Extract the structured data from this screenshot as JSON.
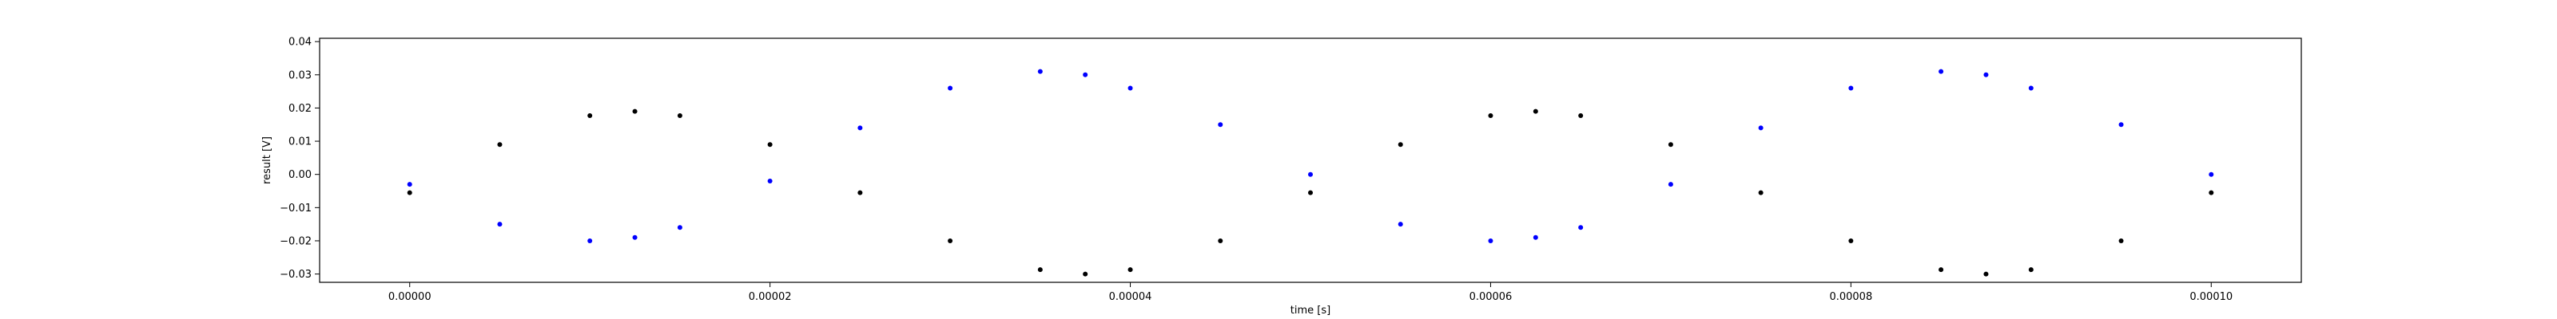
{
  "chart_data": {
    "type": "scatter",
    "xlabel": "time [s]",
    "ylabel": "result [V]",
    "xlim": [
      -5e-06,
      0.000105
    ],
    "ylim": [
      -0.0325,
      0.041
    ],
    "xticks": [
      {
        "value": 0.0,
        "label": "0.00000"
      },
      {
        "value": 2e-05,
        "label": "0.00002"
      },
      {
        "value": 4e-05,
        "label": "0.00004"
      },
      {
        "value": 6e-05,
        "label": "0.00006"
      },
      {
        "value": 8e-05,
        "label": "0.00008"
      },
      {
        "value": 0.0001,
        "label": "0.00010"
      }
    ],
    "yticks": [
      {
        "value": -0.03,
        "label": "−0.03"
      },
      {
        "value": -0.02,
        "label": "−0.02"
      },
      {
        "value": -0.01,
        "label": "−0.01"
      },
      {
        "value": 0.0,
        "label": "0.00"
      },
      {
        "value": 0.01,
        "label": "0.01"
      },
      {
        "value": 0.02,
        "label": "0.02"
      },
      {
        "value": 0.03,
        "label": "0.03"
      },
      {
        "value": 0.04,
        "label": "0.04"
      }
    ],
    "grid": false,
    "series": [
      {
        "color": "#000000",
        "marker": "dot",
        "x": [
          0,
          5e-06,
          1e-05,
          1.25e-05,
          1.5e-05,
          2e-05,
          2.5e-05,
          3e-05,
          3.5e-05,
          3.75e-05,
          4e-05,
          4.5e-05,
          5e-05,
          5.5e-05,
          6e-05,
          6.25e-05,
          6.5e-05,
          7e-05,
          7.5e-05,
          8e-05,
          8.5e-05,
          8.75e-05,
          9e-05,
          9.5e-05,
          0.0001
        ],
        "y": [
          -0.0055,
          0.009,
          0.0177,
          0.019,
          0.0177,
          0.009,
          -0.0055,
          -0.02,
          -0.0287,
          -0.03,
          -0.0287,
          -0.02,
          -0.0055,
          0.009,
          0.0177,
          0.019,
          0.0177,
          0.009,
          -0.0055,
          -0.02,
          -0.0287,
          -0.03,
          -0.0287,
          -0.02,
          -0.0055
        ]
      },
      {
        "color": "#0000ff",
        "marker": "dot",
        "x": [
          0,
          5e-06,
          1e-05,
          1.25e-05,
          1.5e-05,
          2e-05,
          2.5e-05,
          3e-05,
          3.5e-05,
          3.75e-05,
          4e-05,
          4.5e-05,
          5e-05,
          5.5e-05,
          6e-05,
          6.25e-05,
          6.5e-05,
          7e-05,
          7.5e-05,
          8e-05,
          8.5e-05,
          8.75e-05,
          9e-05,
          9.5e-05,
          0.0001
        ],
        "y": [
          -0.003,
          -0.015,
          -0.02,
          -0.019,
          -0.016,
          -0.002,
          0.014,
          0.026,
          0.031,
          0.03,
          0.026,
          0.015,
          0.0,
          -0.015,
          -0.02,
          -0.019,
          -0.016,
          -0.003,
          0.014,
          0.026,
          0.031,
          0.03,
          0.026,
          0.015,
          0.0
        ]
      }
    ]
  }
}
